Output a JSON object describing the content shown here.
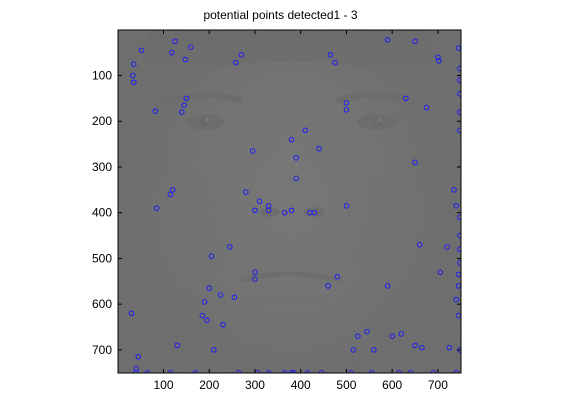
{
  "title": "potential points detected1 - 3",
  "axes": {
    "xlim": [
      1,
      750
    ],
    "ylim": [
      1,
      750
    ],
    "y_reversed": true,
    "x_ticks": [
      100,
      200,
      300,
      400,
      500,
      600,
      700
    ],
    "y_ticks": [
      100,
      200,
      300,
      400,
      500,
      600,
      700
    ]
  },
  "marker_color": "#1414ff",
  "points": [
    [
      125,
      25
    ],
    [
      160,
      38
    ],
    [
      52,
      45
    ],
    [
      35,
      75
    ],
    [
      33,
      100
    ],
    [
      35,
      115
    ],
    [
      118,
      50
    ],
    [
      148,
      65
    ],
    [
      270,
      55
    ],
    [
      258,
      72
    ],
    [
      465,
      55
    ],
    [
      475,
      72
    ],
    [
      590,
      22
    ],
    [
      650,
      25
    ],
    [
      700,
      60
    ],
    [
      702,
      68
    ],
    [
      745,
      40
    ],
    [
      748,
      85
    ],
    [
      150,
      150
    ],
    [
      145,
      165
    ],
    [
      140,
      180
    ],
    [
      82,
      178
    ],
    [
      500,
      160
    ],
    [
      500,
      175
    ],
    [
      630,
      150
    ],
    [
      675,
      170
    ],
    [
      748,
      110
    ],
    [
      748,
      140
    ],
    [
      748,
      180
    ],
    [
      748,
      220
    ],
    [
      410,
      220
    ],
    [
      380,
      240
    ],
    [
      440,
      260
    ],
    [
      295,
      265
    ],
    [
      390,
      280
    ],
    [
      390,
      325
    ],
    [
      650,
      290
    ],
    [
      735,
      350
    ],
    [
      740,
      385
    ],
    [
      748,
      410
    ],
    [
      748,
      450
    ],
    [
      748,
      480
    ],
    [
      748,
      510
    ],
    [
      280,
      355
    ],
    [
      310,
      375
    ],
    [
      330,
      385
    ],
    [
      300,
      395
    ],
    [
      330,
      395
    ],
    [
      365,
      400
    ],
    [
      380,
      395
    ],
    [
      420,
      400
    ],
    [
      430,
      400
    ],
    [
      500,
      385
    ],
    [
      120,
      350
    ],
    [
      115,
      360
    ],
    [
      85,
      390
    ],
    [
      245,
      475
    ],
    [
      205,
      495
    ],
    [
      660,
      470
    ],
    [
      720,
      475
    ],
    [
      705,
      530
    ],
    [
      745,
      535
    ],
    [
      745,
      560
    ],
    [
      300,
      530
    ],
    [
      300,
      545
    ],
    [
      480,
      540
    ],
    [
      460,
      560
    ],
    [
      590,
      560
    ],
    [
      200,
      565
    ],
    [
      225,
      580
    ],
    [
      255,
      585
    ],
    [
      190,
      595
    ],
    [
      185,
      625
    ],
    [
      195,
      635
    ],
    [
      230,
      645
    ],
    [
      30,
      620
    ],
    [
      740,
      590
    ],
    [
      745,
      625
    ],
    [
      725,
      695
    ],
    [
      650,
      690
    ],
    [
      665,
      695
    ],
    [
      545,
      660
    ],
    [
      525,
      670
    ],
    [
      600,
      670
    ],
    [
      620,
      665
    ],
    [
      515,
      700
    ],
    [
      560,
      700
    ],
    [
      130,
      690
    ],
    [
      210,
      700
    ],
    [
      45,
      715
    ],
    [
      40,
      740
    ],
    [
      40,
      750
    ],
    [
      65,
      750
    ],
    [
      115,
      750
    ],
    [
      170,
      750
    ],
    [
      265,
      750
    ],
    [
      305,
      750
    ],
    [
      330,
      750
    ],
    [
      365,
      750
    ],
    [
      380,
      750
    ],
    [
      385,
      750
    ],
    [
      415,
      750
    ],
    [
      445,
      750
    ],
    [
      510,
      750
    ],
    [
      555,
      750
    ],
    [
      615,
      750
    ],
    [
      640,
      750
    ],
    [
      690,
      750
    ],
    [
      740,
      750
    ],
    [
      748,
      700
    ]
  ]
}
